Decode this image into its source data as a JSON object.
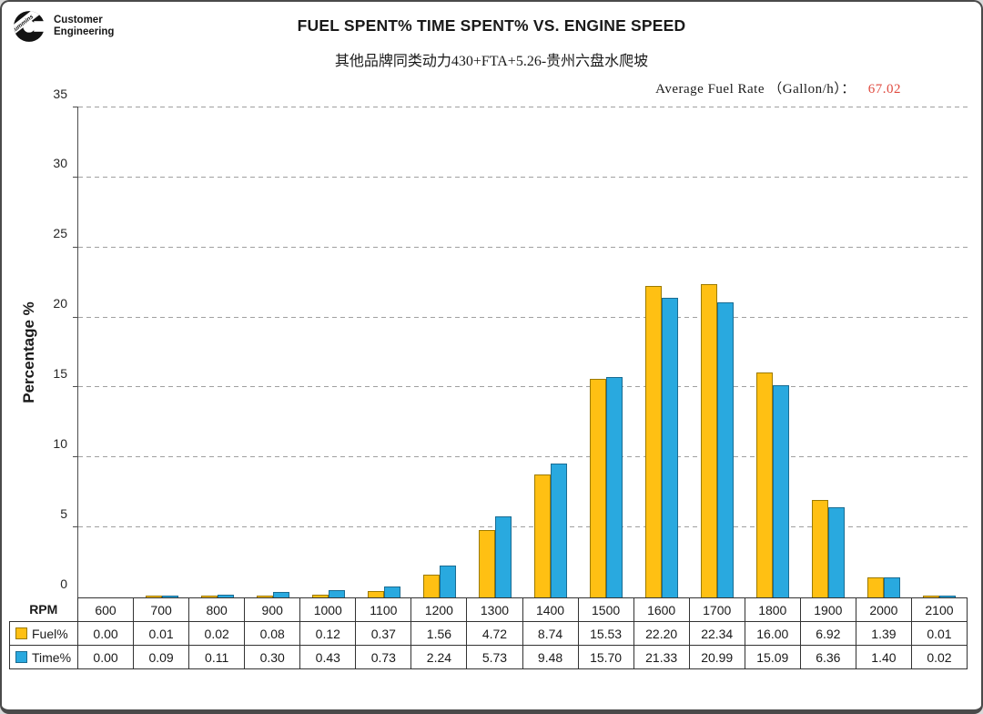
{
  "logo": {
    "mark_text": "Cummins",
    "line1": "Customer",
    "line2": "Engineering"
  },
  "header": {
    "subtitle": "其他品牌同类动力430+FTA+5.26-贵州六盘水爬坡"
  },
  "annotation": {
    "label": "Average Fuel Rate （Gallon/h）：",
    "value": "67.02",
    "value_color": "#E04B40"
  },
  "chart_data": {
    "type": "bar",
    "title": "FUEL SPENT% TIME SPENT% VS. ENGINE SPEED",
    "xlabel": "RPM",
    "ylabel": "Percentage %",
    "categories": [
      600,
      700,
      800,
      900,
      1000,
      1100,
      1200,
      1300,
      1400,
      1500,
      1600,
      1700,
      1800,
      1900,
      2000,
      2100
    ],
    "series": [
      {
        "name": "Fuel%",
        "fill": "#FFC013",
        "border": "#9C7A00",
        "values": [
          0.0,
          0.01,
          0.02,
          0.08,
          0.12,
          0.37,
          1.56,
          4.72,
          8.74,
          15.53,
          22.2,
          22.34,
          16.0,
          6.92,
          1.39,
          0.01
        ]
      },
      {
        "name": "Time%",
        "fill": "#29A9DF",
        "border": "#1A6C92",
        "values": [
          0.0,
          0.09,
          0.11,
          0.3,
          0.43,
          0.73,
          2.24,
          5.73,
          9.48,
          15.7,
          21.33,
          20.99,
          15.09,
          6.36,
          1.4,
          0.02
        ]
      }
    ],
    "ylim": [
      0,
      35
    ],
    "yticks": [
      0,
      5,
      10,
      15,
      20,
      25,
      30,
      35
    ],
    "grid": "horizontal-dashed",
    "gridline_color": "#A0A0A0",
    "axis_color": "#4D4D4D",
    "legend_position": "table-left"
  },
  "table": {
    "corner_label": "RPM"
  }
}
